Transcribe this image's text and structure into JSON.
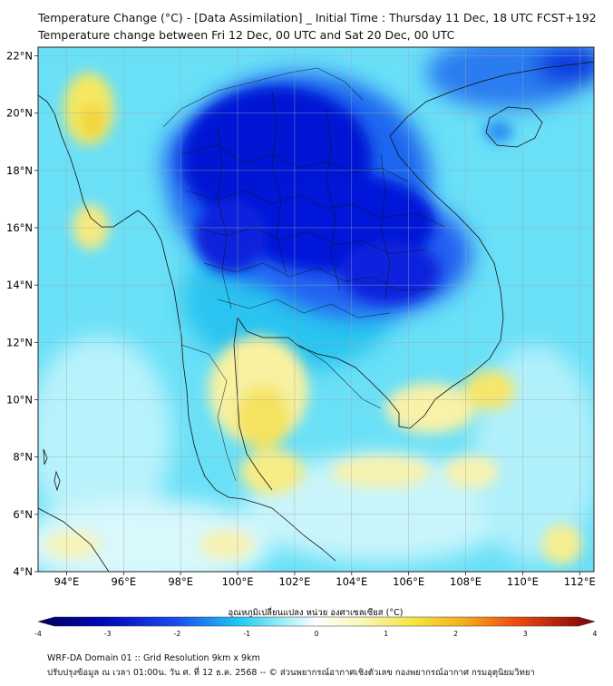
{
  "title": "Temperature Change (°C) - [Data Assimilation] _ Initial Time : Thursday 11 Dec, 18 UTC FCST+192",
  "subtitle": "Temperature change between Fri 12 Dec, 00 UTC and Sat 20 Dec, 00 UTC",
  "map": {
    "lon_range": [
      93,
      112.5
    ],
    "lat_range": [
      4,
      22.3
    ],
    "lon_ticks": [
      "94°E",
      "96°E",
      "98°E",
      "100°E",
      "102°E",
      "104°E",
      "106°E",
      "108°E",
      "110°E",
      "112°E"
    ],
    "lat_ticks": [
      "22°N",
      "20°N",
      "18°N",
      "16°N",
      "14°N",
      "12°N",
      "10°N",
      "8°N",
      "6°N",
      "4°N"
    ],
    "grid": true
  },
  "colorbar": {
    "label": "อุณหภูมิเปลี่ยนแปลง หน่วย องศาเซลเซียส (°C)",
    "tick_labels": [
      "-4",
      "-3",
      "-2",
      "-1",
      "0",
      "1",
      "2",
      "3",
      "4"
    ],
    "range": [
      -4,
      4
    ]
  },
  "colors": {
    "deep_blue": "#0018d8",
    "mid_blue": "#2a6cf0",
    "cyan": "#1fd0f2",
    "light_cyan": "#9af0fb",
    "pale": "#eafcfd",
    "light_yellow": "#f8f4a8",
    "yellow": "#f5dd3a"
  },
  "footer": {
    "line1": "WRF-DA Domain 01 :: Grid Resolution 9km x 9km",
    "line2": "ปรับปรุงข้อมูล ณ เวลา 01:00น. วัน ศ. ที่ 12 ธ.ค. 2568 -- © ส่วนพยากรณ์อากาศเชิงตัวเลข กองพยากรณ์อากาศ กรมอุตุนิยมวิทยา"
  }
}
